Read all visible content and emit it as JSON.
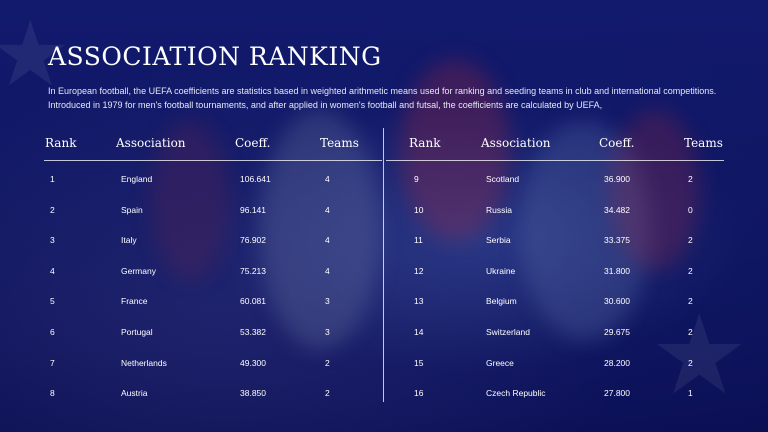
{
  "title": "ASSOCIATION RANKING",
  "intro": {
    "line1": "In European football, the UEFA coefficients are statistics based in weighted arithmetic means used for ranking and seeding teams in club and international competitions.",
    "line2": "Introduced in 1979 for men's football tournaments, and after applied in women's football and futsal, the coefficients are calculated by UEFA,"
  },
  "headers": {
    "rank": "Rank",
    "association": "Association",
    "coeff": "Coeff.",
    "teams": "Teams"
  },
  "left_rows": [
    {
      "rank": "1",
      "association": "England",
      "coeff": "106.641",
      "teams": "4"
    },
    {
      "rank": "2",
      "association": "Spain",
      "coeff": "96.141",
      "teams": "4"
    },
    {
      "rank": "3",
      "association": "Italy",
      "coeff": "76.902",
      "teams": "4"
    },
    {
      "rank": "4",
      "association": "Germany",
      "coeff": "75.213",
      "teams": "4"
    },
    {
      "rank": "5",
      "association": "France",
      "coeff": "60.081",
      "teams": "3"
    },
    {
      "rank": "6",
      "association": "Portugal",
      "coeff": "53.382",
      "teams": "3"
    },
    {
      "rank": "7",
      "association": "Netherlands",
      "coeff": "49.300",
      "teams": "2"
    },
    {
      "rank": "8",
      "association": "Austria",
      "coeff": "38.850",
      "teams": "2"
    }
  ],
  "right_rows": [
    {
      "rank": "9",
      "association": "Scotland",
      "coeff": "36.900",
      "teams": "2"
    },
    {
      "rank": "10",
      "association": "Russia",
      "coeff": "34.482",
      "teams": "0"
    },
    {
      "rank": "11",
      "association": "Serbia",
      "coeff": "33.375",
      "teams": "2"
    },
    {
      "rank": "12",
      "association": "Ukraine",
      "coeff": "31.800",
      "teams": "2"
    },
    {
      "rank": "13",
      "association": "Belgium",
      "coeff": "30.600",
      "teams": "2"
    },
    {
      "rank": "14",
      "association": "Switzerland",
      "coeff": "29.675",
      "teams": "2"
    },
    {
      "rank": "15",
      "association": "Greece",
      "coeff": "28.200",
      "teams": "2"
    },
    {
      "rank": "16",
      "association": "Czech Republic",
      "coeff": "27.800",
      "teams": "1"
    }
  ],
  "colors": {
    "background": "#0f1662",
    "text": "#ffffff"
  }
}
